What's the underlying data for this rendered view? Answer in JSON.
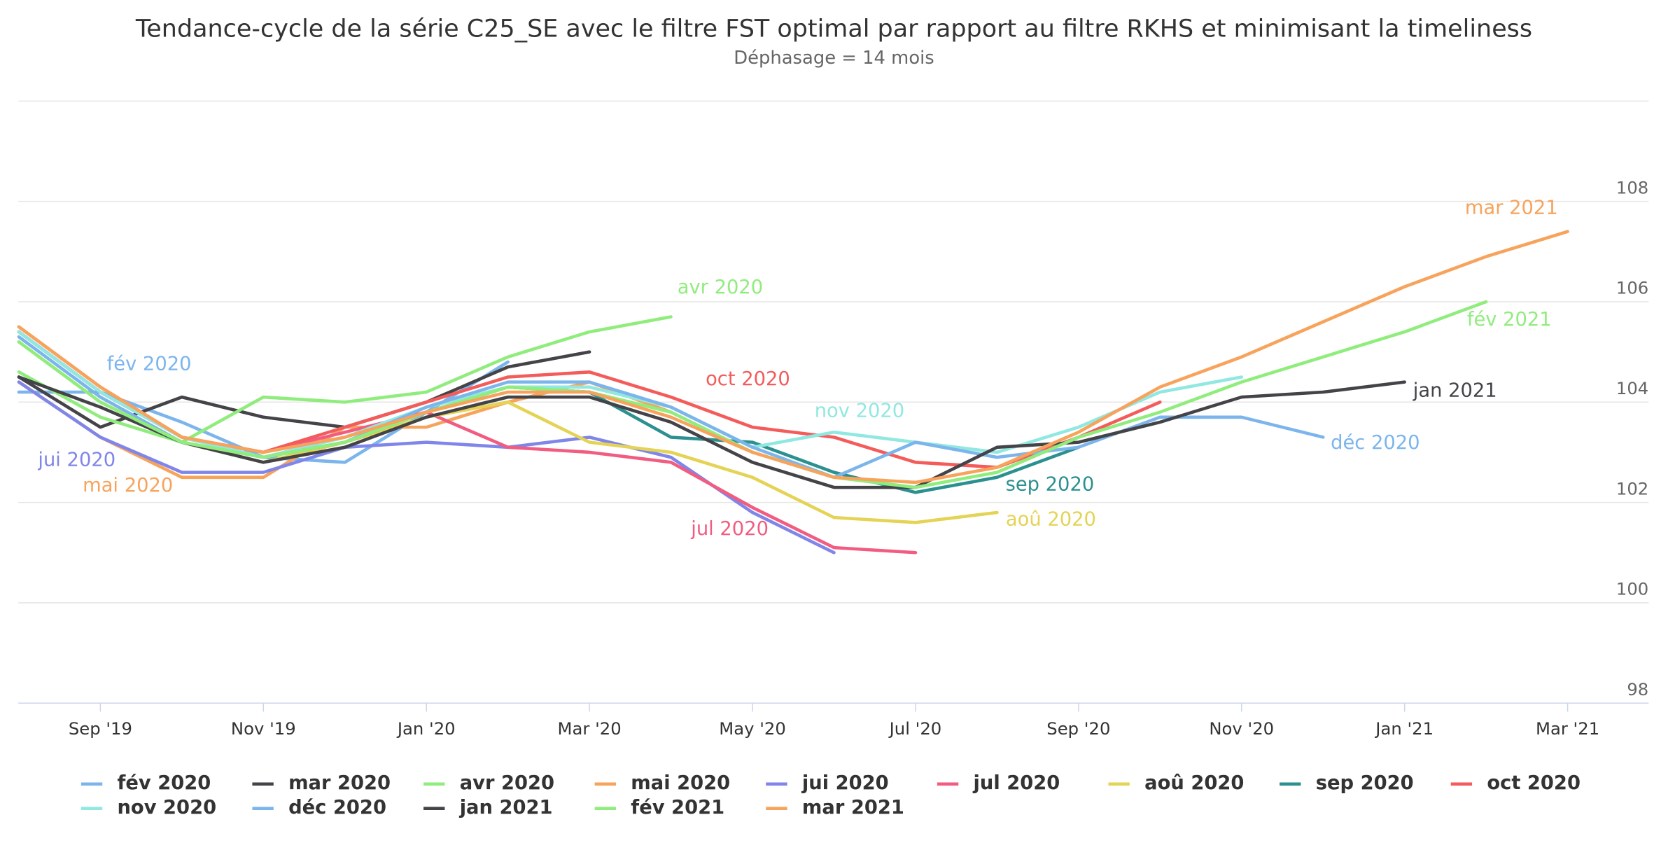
{
  "chart_data": {
    "type": "line",
    "title": "Tendance-cycle de la série C25_SE avec le filtre FST optimal par rapport au filtre RKHS et minimisant la timeliness",
    "subtitle": "Déphasage = 14 mois",
    "x": [
      "2019-08",
      "2019-09",
      "2019-10",
      "2019-11",
      "2019-12",
      "2020-01",
      "2020-02",
      "2020-03",
      "2020-04",
      "2020-05",
      "2020-06",
      "2020-07",
      "2020-08",
      "2020-09",
      "2020-10",
      "2020-11",
      "2020-12",
      "2021-01",
      "2021-02",
      "2021-03"
    ],
    "xticks": [
      {
        "value": "2019-09",
        "label": "Sep '19"
      },
      {
        "value": "2019-11",
        "label": "Nov '19"
      },
      {
        "value": "2020-01",
        "label": "Jan '20"
      },
      {
        "value": "2020-03",
        "label": "Mar '20"
      },
      {
        "value": "2020-05",
        "label": "May '20"
      },
      {
        "value": "2020-07",
        "label": "Jul '20"
      },
      {
        "value": "2020-09",
        "label": "Sep '20"
      },
      {
        "value": "2020-11",
        "label": "Nov '20"
      },
      {
        "value": "2021-01",
        "label": "Jan '21"
      },
      {
        "value": "2021-03",
        "label": "Mar '21"
      }
    ],
    "ylim": [
      98,
      110
    ],
    "yticks": [
      98,
      100,
      102,
      104,
      106,
      108
    ],
    "grid": true,
    "series": [
      {
        "name": "fév 2020",
        "color": "#7cb5ec",
        "values": [
          104.2,
          104.2,
          103.6,
          102.9,
          102.8,
          103.8,
          104.8,
          null,
          null,
          null,
          null,
          null,
          null,
          null,
          null,
          null,
          null,
          null,
          null,
          null
        ]
      },
      {
        "name": "mar 2020",
        "color": "#434348",
        "values": [
          104.5,
          103.5,
          104.1,
          103.7,
          103.5,
          104.0,
          104.7,
          105.0,
          null,
          null,
          null,
          null,
          null,
          null,
          null,
          null,
          null,
          null,
          null,
          null
        ]
      },
      {
        "name": "avr 2020",
        "color": "#90ed7d",
        "values": [
          104.6,
          103.7,
          103.2,
          104.1,
          104.0,
          104.2,
          104.9,
          105.4,
          105.7,
          null,
          null,
          null,
          null,
          null,
          null,
          null,
          null,
          null,
          null,
          null
        ]
      },
      {
        "name": "mai 2020",
        "color": "#f7a35c",
        "values": [
          104.4,
          103.3,
          102.5,
          102.5,
          103.5,
          103.5,
          104.0,
          104.4,
          103.8,
          103.0,
          null,
          null,
          null,
          null,
          null,
          null,
          null,
          null,
          null,
          null
        ]
      },
      {
        "name": "jui 2020",
        "color": "#8085e9",
        "values": [
          104.4,
          103.3,
          102.6,
          102.6,
          103.1,
          103.2,
          103.1,
          103.3,
          102.9,
          101.8,
          101.0,
          null,
          null,
          null,
          null,
          null,
          null,
          null,
          null,
          null
        ]
      },
      {
        "name": "jul 2020",
        "color": "#f15c80",
        "values": [
          105.4,
          104.2,
          103.3,
          103.0,
          103.4,
          103.8,
          103.1,
          103.0,
          102.8,
          101.9,
          101.1,
          101.0,
          null,
          null,
          null,
          null,
          null,
          null,
          null,
          null
        ]
      },
      {
        "name": "aoû 2020",
        "color": "#e4d354",
        "values": [
          105.2,
          104.0,
          103.2,
          102.8,
          103.2,
          103.7,
          104.0,
          103.2,
          103.0,
          102.5,
          101.7,
          101.6,
          101.8,
          null,
          null,
          null,
          null,
          null,
          null,
          null
        ]
      },
      {
        "name": "sep 2020",
        "color": "#2b908f",
        "values": [
          105.4,
          104.2,
          103.3,
          102.9,
          103.2,
          103.8,
          104.3,
          104.2,
          103.3,
          103.2,
          102.6,
          102.2,
          102.5,
          103.1,
          null,
          null,
          null,
          null,
          null,
          null
        ]
      },
      {
        "name": "oct 2020",
        "color": "#f45b5b",
        "values": [
          105.5,
          104.3,
          103.3,
          103.0,
          103.5,
          104.0,
          104.5,
          104.6,
          104.1,
          103.5,
          103.3,
          102.8,
          102.7,
          103.3,
          104.0,
          null,
          null,
          null,
          null,
          null
        ]
      },
      {
        "name": "nov 2020",
        "color": "#91e8e1",
        "values": [
          105.4,
          104.2,
          103.3,
          102.9,
          103.3,
          103.9,
          104.3,
          104.3,
          103.9,
          103.1,
          103.4,
          103.2,
          103.0,
          103.5,
          104.2,
          104.5,
          null,
          null,
          null,
          null
        ]
      },
      {
        "name": "déc 2020",
        "color": "#7cb5ec",
        "values": [
          105.3,
          104.1,
          103.2,
          102.9,
          103.2,
          103.9,
          104.4,
          104.4,
          103.9,
          103.1,
          102.5,
          103.2,
          102.9,
          103.1,
          103.7,
          103.7,
          103.3,
          null,
          null,
          null
        ]
      },
      {
        "name": "jan 2021",
        "color": "#434348",
        "values": [
          104.5,
          103.9,
          103.2,
          102.8,
          103.1,
          103.7,
          104.1,
          104.1,
          103.6,
          102.8,
          102.3,
          102.3,
          103.1,
          103.2,
          103.6,
          104.1,
          104.2,
          104.4,
          null,
          null
        ]
      },
      {
        "name": "fév 2021",
        "color": "#90ed7d",
        "values": [
          105.2,
          104.0,
          103.2,
          102.9,
          103.2,
          103.8,
          104.3,
          104.2,
          103.8,
          103.0,
          102.5,
          102.3,
          102.6,
          103.3,
          103.8,
          104.4,
          104.9,
          105.4,
          106.0,
          null
        ]
      },
      {
        "name": "mar 2021",
        "color": "#f7a35c",
        "values": [
          105.5,
          104.3,
          103.3,
          103.0,
          103.3,
          103.8,
          104.2,
          104.2,
          103.7,
          103.0,
          102.5,
          102.4,
          102.7,
          103.4,
          104.3,
          104.9,
          105.6,
          106.3,
          106.9,
          107.4
        ]
      }
    ]
  }
}
